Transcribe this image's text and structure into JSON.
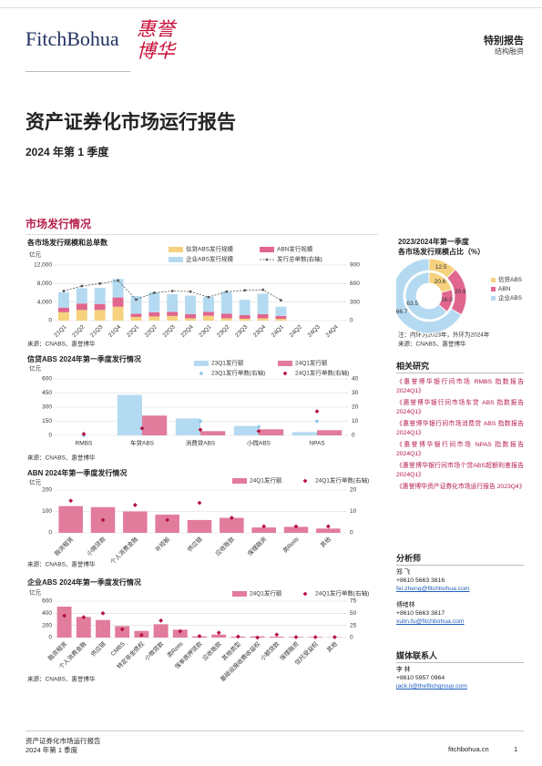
{
  "header": {
    "logo_en": "FitchBohua",
    "logo_cn": [
      "惠誉",
      "博华"
    ],
    "report_type": "特别报告",
    "sector": "结构融资"
  },
  "title": "资产证券化市场运行报告",
  "subtitle": "2024 年第 1 季度",
  "section": "市场发行情况",
  "chart_data": [
    {
      "type": "bar",
      "title": "各市场发行规模和总单数",
      "y_label": "亿元",
      "stacked": true,
      "grid": true,
      "categories": [
        "21Q1",
        "21Q2",
        "21Q3",
        "21Q4",
        "22Q1",
        "22Q2",
        "22Q3",
        "22Q4",
        "23Q1",
        "23Q2",
        "23Q3",
        "23Q4",
        "24Q1",
        "24Q2",
        "24Q3",
        "24Q4"
      ],
      "series": [
        {
          "name": "信贷ABS发行规模",
          "color": "#f6d27f",
          "values": [
            1800,
            2300,
            2300,
            3000,
            800,
            900,
            1000,
            500,
            1050,
            500,
            400,
            500,
            380,
            null,
            null,
            null
          ]
        },
        {
          "name": "ABN发行规模",
          "color": "#e1668e",
          "values": [
            1000,
            1400,
            1300,
            2000,
            700,
            900,
            900,
            900,
            820,
            1000,
            800,
            900,
            630,
            null,
            null,
            null
          ]
        },
        {
          "name": "企业ABS发行规模",
          "color": "#b4daf1",
          "values": [
            3300,
            3300,
            3500,
            4000,
            3800,
            4300,
            3800,
            4000,
            3240,
            4700,
            3300,
            4400,
            2000,
            null,
            null,
            null
          ]
        },
        {
          "name": "发行总单数(右轴)",
          "type": "line",
          "line_style": "dashed",
          "axis": "y2",
          "color": "#555555",
          "values": [
            480,
            560,
            600,
            650,
            340,
            450,
            480,
            470,
            380,
            470,
            490,
            500,
            330,
            null,
            null,
            null
          ]
        }
      ],
      "ylim": [
        0,
        12000
      ],
      "yticks": [
        0,
        {
          "value": 4000,
          "label": "4,000"
        },
        {
          "value": 8000,
          "label": "8,000"
        },
        {
          "value": 12000,
          "label": "12,000"
        }
      ],
      "y2lim": [
        0,
        900
      ],
      "y2ticks": [
        0,
        300,
        600,
        900
      ],
      "source": "来源：CNABS、惠誉博华"
    },
    {
      "type": "bar",
      "title": "信贷ABS 2024年第一季度发行情况",
      "y_label": "亿元",
      "grid": true,
      "categories": [
        "RMBS",
        "车贷ABS",
        "消费贷ABS",
        "小微ABS",
        "NPAS"
      ],
      "series": [
        {
          "name": "23Q1发行额",
          "color": "#b4daf1",
          "values": [
            0,
            430,
            180,
            100,
            35
          ]
        },
        {
          "name": "24Q1发行额",
          "color": "#e27c9c",
          "values": [
            0,
            210,
            45,
            65,
            55
          ]
        },
        {
          "name": "23Q1发行单数(右轴)",
          "type": "scatter",
          "axis": "y2",
          "color": "#8ec8ea",
          "values": [
            0,
            5,
            10,
            6,
            10
          ]
        },
        {
          "name": "24Q1发行单数(右轴)",
          "type": "scatter",
          "axis": "y2",
          "color": "#b5123f",
          "values": [
            1,
            5,
            4,
            3,
            17
          ]
        }
      ],
      "ylim": [
        0,
        600
      ],
      "yticks": [
        0,
        150,
        300,
        450,
        600
      ],
      "y2lim": [
        0,
        40
      ],
      "y2ticks": [
        0,
        10,
        20,
        30,
        40
      ],
      "source": "来源：CNABS、惠誉博华"
    },
    {
      "type": "bar",
      "title": "ABN 2024年第一季度发行情况",
      "y_label": "亿元",
      "grid": true,
      "categories": [
        "融资租赁",
        "小微贷款",
        "个人消费金融",
        "补短板",
        "供应链",
        "应收账款",
        "保理融资",
        "类Reits",
        "其他"
      ],
      "series": [
        {
          "name": "24Q1发行额",
          "color": "#e27c9c",
          "values": [
            125,
            120,
            100,
            85,
            60,
            70,
            25,
            28,
            20
          ]
        },
        {
          "name": "24Q1发行单数(右轴)",
          "type": "scatter",
          "axis": "y2",
          "color": "#b5123f",
          "values": [
            15,
            6,
            13,
            6,
            14,
            7,
            3,
            3,
            3
          ]
        }
      ],
      "ylim": [
        0,
        200
      ],
      "yticks": [
        0,
        100,
        200
      ],
      "y2lim": [
        0,
        20
      ],
      "y2ticks": [
        0,
        10,
        20
      ],
      "source": "来源：CNABS、惠誉博华"
    },
    {
      "type": "bar",
      "title": "企业ABS 2024年第一季度发行情况",
      "y_label": "亿元",
      "grid": true,
      "categories": [
        "融资租赁",
        "个人消费金融",
        "供应链",
        "CMBS",
        "特定非金债权",
        "小微贷款",
        "类Reits",
        "保单质押贷款",
        "应收账款",
        "其他类型",
        "基础设施收费收益权",
        "小额贷款",
        "保理融资",
        "信托受益权",
        "其他"
      ],
      "series": [
        {
          "name": "24Q1发行额",
          "color": "#e27c9c",
          "values": [
            510,
            340,
            290,
            190,
            110,
            220,
            130,
            20,
            50,
            15,
            20,
            15,
            10,
            10,
            5
          ]
        },
        {
          "name": "24Q1发行单数(右轴)",
          "type": "scatter",
          "axis": "y2",
          "color": "#b5123f",
          "values": [
            45,
            42,
            50,
            17,
            5,
            35,
            13,
            3,
            10,
            2,
            0,
            6,
            1,
            1,
            1
          ]
        }
      ],
      "ylim": [
        0,
        600
      ],
      "yticks": [
        0,
        200,
        400,
        600
      ],
      "y2lim": [
        0,
        75
      ],
      "y2ticks": [
        0,
        25,
        50,
        75
      ],
      "source": "来源：CNABS、惠誉博华"
    },
    {
      "type": "pie",
      "title": "2023/2024年第一季度",
      "subtitle": "各市场发行规模占比（%）",
      "categories": [
        "信贷ABS",
        "ABN",
        "企业ABS"
      ],
      "colors": [
        "#f6d27f",
        "#e1668e",
        "#b4daf1"
      ],
      "series": [
        {
          "values": [
            12.5,
            20.9,
            66.7
          ],
          "value_labels": [
            "12.5",
            "20.9",
            "66.7"
          ]
        },
        {
          "values": [
            20.6,
            16.0,
            63.5
          ],
          "value_labels": [
            "20.6",
            "16.0",
            "63.5"
          ]
        }
      ],
      "note": "注：内环为2023年，外环为2024年",
      "source": "来源：CNABS、惠誉博华"
    }
  ],
  "sidebar": {
    "related": {
      "heading": "相关研究",
      "items": [
        "《惠誉博华银行间市场 RMBS 指数报告 2024Q1》",
        "《惠誉博华银行间市场车贷 ABS 指数报告 2024Q1》",
        "《惠誉博华银行间市场消费贷 ABS 指数报告 2024Q1》",
        "《惠誉博华银行间市场 NPAS 指数报告 2024Q1》",
        "《惠誉博华银行间市场个贷ABS超额利差报告 2024Q1》",
        "《惠誉博华资产证券化市场运行报告 2023Q4》"
      ]
    },
    "analysts": {
      "heading": "分析师",
      "people": [
        {
          "name": "郑 飞",
          "phone": "+8610 5663 3816",
          "email": "fei.zheng@fitchbohua.com"
        },
        {
          "name": "傅绪林",
          "phone": "+8610 5663 3817",
          "email": "xulin.fu@fitchbohua.com"
        }
      ]
    },
    "media": {
      "heading": "媒体联系人",
      "people": [
        {
          "name": "李 林",
          "phone": "+8610 5957 0964",
          "email": "jack.li@thefitchgroup.com"
        }
      ]
    }
  },
  "footer": {
    "title": "资产证券化市场运行报告",
    "subtitle": "2024 年第 1 季度",
    "site": "fitchbohua.cn",
    "page": 1
  }
}
